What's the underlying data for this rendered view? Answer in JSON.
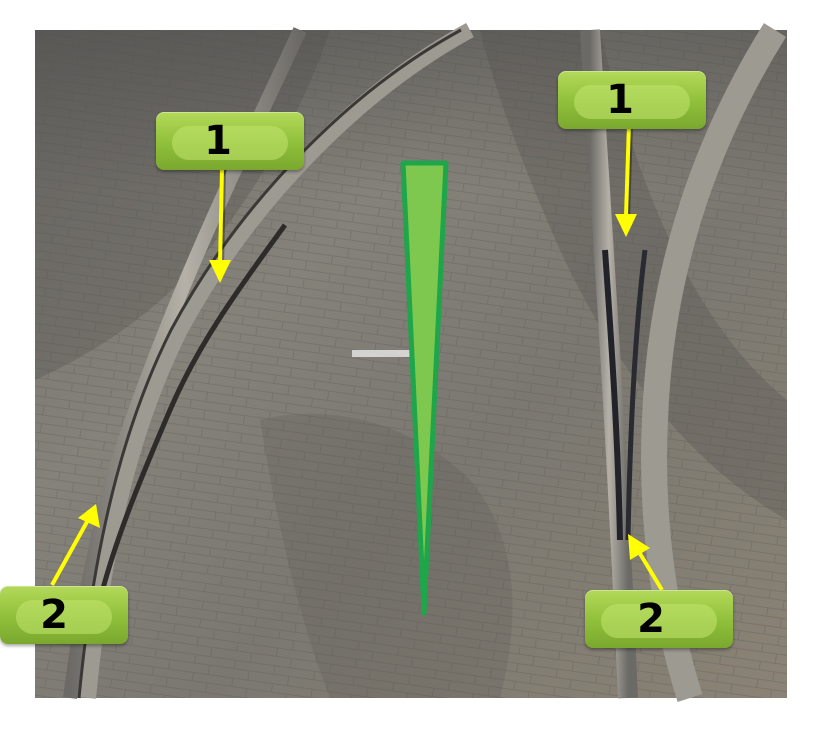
{
  "labels": {
    "one_left": "1",
    "one_right": "1",
    "two_left": "2",
    "two_right": "2"
  },
  "colors": {
    "label_green": "#8fbf3a",
    "arrow_yellow": "#ffff00",
    "wedge_fill": "#7ec850",
    "wedge_stroke": "#1fa54a"
  },
  "icons": {
    "arrow": "arrow-icon",
    "wedge": "wedge-icon"
  }
}
